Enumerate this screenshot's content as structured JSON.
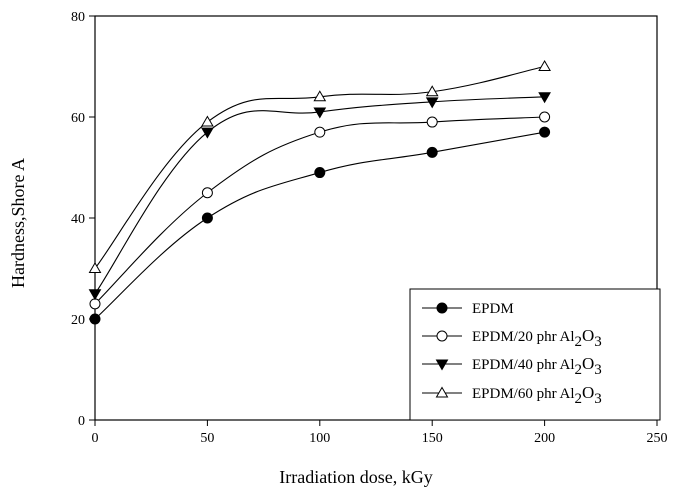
{
  "chart_data": {
    "type": "line",
    "title": "",
    "xlabel": "Irradiation dose, kGy",
    "ylabel": "Hardness,Shore A",
    "xlim": [
      0,
      250
    ],
    "ylim": [
      0,
      80
    ],
    "x_ticks": [
      0,
      50,
      100,
      150,
      200,
      250
    ],
    "y_ticks": [
      0,
      20,
      40,
      60,
      80
    ],
    "grid": false,
    "legend_position": "bottom-right",
    "x": [
      0,
      50,
      100,
      150,
      200
    ],
    "series": [
      {
        "name": "EPDM",
        "name_main": "EPDM",
        "formula": "",
        "marker": "filled-circle",
        "values": [
          20,
          40,
          49,
          53,
          57
        ]
      },
      {
        "name": "EPDM/20 phr Al2O3",
        "name_main": "EPDM/20 phr Al",
        "formula": "2O3",
        "marker": "open-circle",
        "values": [
          23,
          45,
          57,
          59,
          60
        ]
      },
      {
        "name": "EPDM/40 phr Al2O3",
        "name_main": "EPDM/40 phr Al",
        "formula": "2O3",
        "marker": "filled-triangle-down",
        "values": [
          25,
          57,
          61,
          63,
          64
        ]
      },
      {
        "name": "EPDM/60 phr  Al2O3",
        "name_main": "EPDM/60 phr  Al",
        "formula": "2O3",
        "marker": "open-triangle-up",
        "values": [
          30,
          59,
          64,
          65,
          70
        ]
      }
    ]
  }
}
